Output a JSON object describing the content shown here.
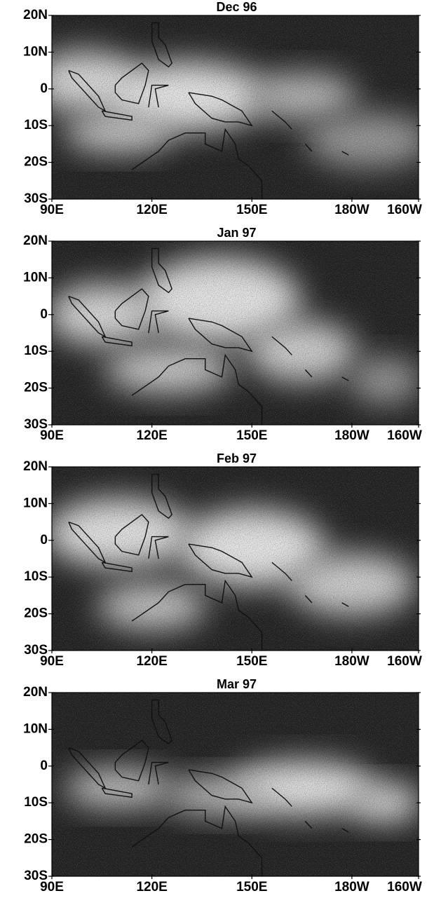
{
  "panels": [
    {
      "title": "Dec 96"
    },
    {
      "title": "Jan 97"
    },
    {
      "title": "Feb 97"
    },
    {
      "title": "Mar 97"
    }
  ],
  "lat_labels": [
    "20N",
    "10N",
    "0",
    "10S",
    "20S",
    "30S"
  ],
  "lon_labels": [
    "90E",
    "120E",
    "150E",
    "180W",
    "160W"
  ]
}
